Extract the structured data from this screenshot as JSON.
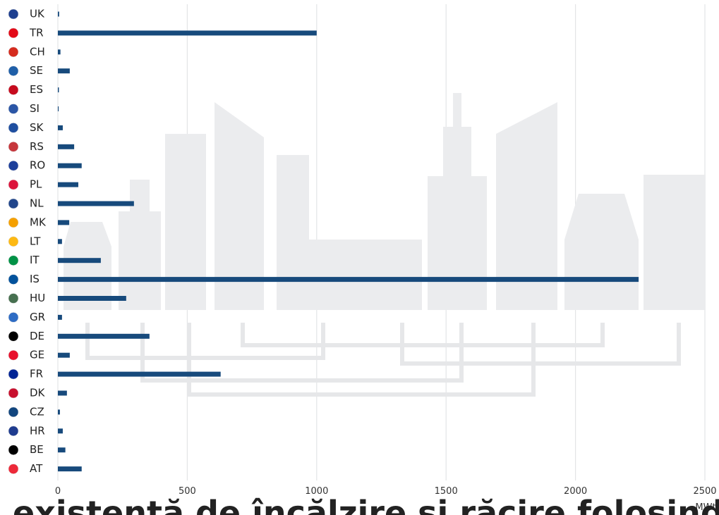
{
  "chart_data": {
    "type": "hbar",
    "categories": [
      "UK",
      "TR",
      "CH",
      "SE",
      "ES",
      "SI",
      "SK",
      "RS",
      "RO",
      "PL",
      "NL",
      "MK",
      "LT",
      "IT",
      "IS",
      "HU",
      "GR",
      "DE",
      "GE",
      "FR",
      "DK",
      "CZ",
      "HR",
      "BE",
      "AT"
    ],
    "values": [
      5,
      1000,
      10,
      46,
      4,
      3,
      19,
      63,
      92,
      79,
      294,
      44,
      16,
      166,
      2244,
      264,
      16,
      354,
      46,
      629,
      35,
      8,
      19,
      29,
      92
    ],
    "color": "#174a7c",
    "xlim": [
      0,
      2500
    ],
    "xticks": [
      0,
      500,
      1000,
      1500,
      2000,
      2500
    ],
    "grid": true,
    "x_label": "MWt",
    "title": "existentă de încălzire și răcire folosind en"
  }
}
